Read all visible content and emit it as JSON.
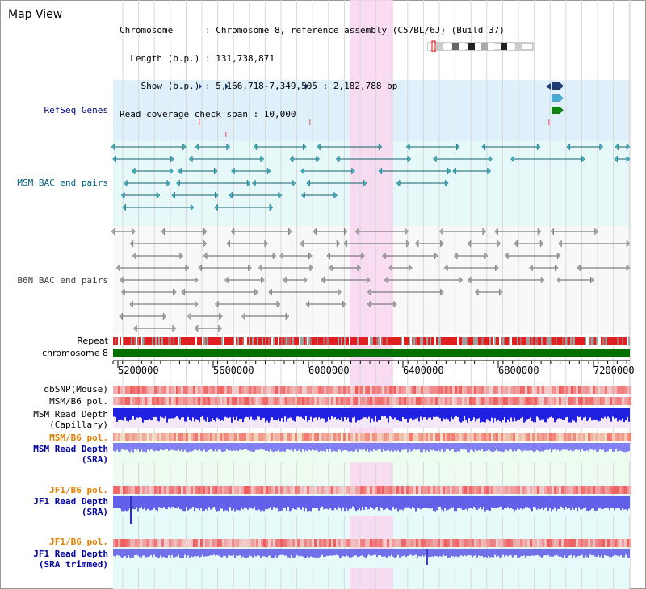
{
  "header": {
    "title": "Map View",
    "info_lines": [
      "Chromosome      : Chromosome 8, reference assembly (C57BL/6J) (Build 37)",
      "  Length (b.p.) : 131,738,871",
      "    Show (b.p.) : 5,166,718-7,349,505 : 2,182,788 bp",
      "Read coverage check span : 10,000"
    ]
  },
  "axis": {
    "chromosome_label": "chromosome 8",
    "repeat_label": "Repeat",
    "ticks": [
      "5200000",
      "5600000",
      "6000000",
      "6400000",
      "6800000",
      "7200000"
    ]
  },
  "tracks": {
    "refseq": "RefSeq Genes",
    "msm_bac": "MSM BAC end pairs",
    "b6n_bac": "B6N BAC end pairs",
    "dbsnp": "dbSNP(Mouse)",
    "msm_b6_pol_1": "MSM/B6 pol.",
    "msm_depth_cap": [
      "MSM Read Depth",
      "(Capillary)"
    ],
    "msm_b6_pol_2": "MSM/B6 pol.",
    "msm_depth_sra": [
      "MSM Read Depth",
      "(SRA)"
    ],
    "jf1_b6_pol_1": "JF1/B6 pol.",
    "jf1_depth_sra": [
      "JF1 Read Depth",
      "(SRA)"
    ],
    "jf1_b6_pol_2": "JF1/B6 pol.",
    "jf1_depth_trim": [
      "JF1 Read Depth",
      "(SRA trimmed)"
    ]
  },
  "colors": {
    "refseq_label": "#000080",
    "msm_label": "#006080",
    "b6n_label": "#404040",
    "sra_label": "#0000a0",
    "pol_orange": "#e08000",
    "highlight": "#f8d8f0",
    "chrom_bar": "#007000"
  }
}
